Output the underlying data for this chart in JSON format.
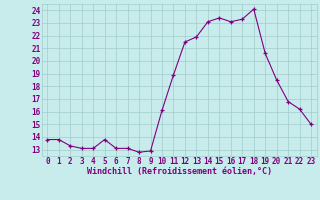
{
  "hours": [
    0,
    1,
    2,
    3,
    4,
    5,
    6,
    7,
    8,
    9,
    10,
    11,
    12,
    13,
    14,
    15,
    16,
    17,
    18,
    19,
    20,
    21,
    22,
    23
  ],
  "values": [
    13.8,
    13.8,
    13.3,
    13.1,
    13.1,
    13.8,
    13.1,
    13.1,
    12.8,
    12.9,
    16.1,
    18.9,
    21.5,
    21.9,
    23.1,
    23.4,
    23.1,
    23.3,
    24.1,
    20.6,
    18.5,
    16.8,
    16.2,
    15.0
  ],
  "line_color": "#800080",
  "marker": "+",
  "bg_color": "#c8ecec",
  "grid_color": "#a0cccc",
  "xlabel": "Windchill (Refroidissement éolien,°C)",
  "xlabel_color": "#800080",
  "xlabel_fontsize": 6.0,
  "tick_color": "#800080",
  "tick_fontsize": 5.5,
  "ylim": [
    12.5,
    24.5
  ],
  "yticks": [
    13,
    14,
    15,
    16,
    17,
    18,
    19,
    20,
    21,
    22,
    23,
    24
  ],
  "xlim": [
    -0.5,
    23.5
  ],
  "xticks": [
    0,
    1,
    2,
    3,
    4,
    5,
    6,
    7,
    8,
    9,
    10,
    11,
    12,
    13,
    14,
    15,
    16,
    17,
    18,
    19,
    20,
    21,
    22,
    23
  ]
}
